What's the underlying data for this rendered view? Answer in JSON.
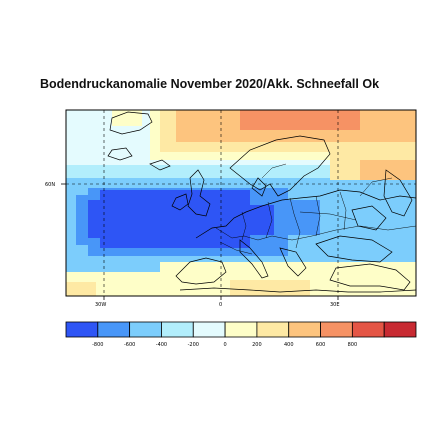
{
  "title": "Bodendruckanomalie November 2020/Akk. Schneefall Ok",
  "map": {
    "lat_labels": [
      "60N"
    ],
    "lon_labels": [
      "30W",
      "0",
      "30E"
    ],
    "grid_style": "dashed"
  },
  "colorbar": {
    "tick_labels": [
      "-800",
      "-600",
      "-400",
      "-200",
      "0",
      "200",
      "400",
      "600",
      "800"
    ],
    "colors": [
      "#2e55f5",
      "#4896f8",
      "#7ccdfc",
      "#b2eefc",
      "#e4fbfe",
      "#fefec8",
      "#fee9a4",
      "#fdc47e",
      "#f69264",
      "#e45545",
      "#c82a32"
    ],
    "unit": ""
  }
}
